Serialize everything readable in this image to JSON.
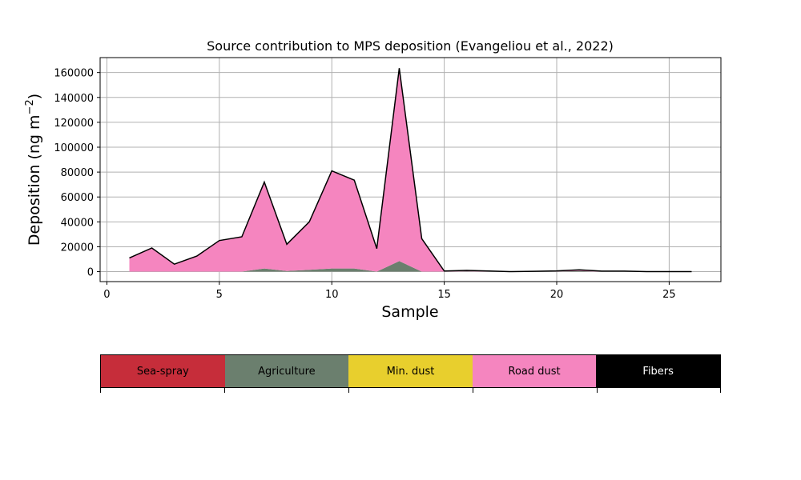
{
  "chart_data": {
    "type": "area",
    "title": "Source contribution to MPS deposition (Evangeliou et al., 2022)",
    "xlabel": "Sample",
    "ylabel": "Deposition (ng m",
    "ylabel_sup": "−2",
    "ylabel_close": ")",
    "xlim": [
      -0.3,
      27.3
    ],
    "ylim": [
      -8000,
      172000
    ],
    "xticks": [
      0,
      5,
      10,
      15,
      20,
      25
    ],
    "yticks": [
      0,
      20000,
      40000,
      60000,
      80000,
      100000,
      120000,
      140000,
      160000
    ],
    "grid": true,
    "x": [
      1,
      2,
      3,
      4,
      5,
      6,
      7,
      8,
      9,
      10,
      11,
      12,
      13,
      14,
      15,
      16,
      17,
      18,
      19,
      20,
      21,
      22,
      23,
      24,
      25,
      26
    ],
    "series": [
      {
        "name": "Sea-spray",
        "color": "#c62d3a",
        "values": [
          0,
          0,
          0,
          0,
          0,
          0,
          0,
          0,
          0,
          0,
          0,
          0,
          0,
          0,
          0,
          0,
          0,
          0,
          0,
          0,
          0,
          0,
          0,
          0,
          0,
          0
        ]
      },
      {
        "name": "Agriculture",
        "color": "#6b7f6e",
        "values": [
          0,
          0,
          0,
          0,
          0,
          0,
          2500,
          500,
          1500,
          2500,
          2500,
          0,
          8500,
          0,
          0,
          300,
          0,
          0,
          0,
          200,
          400,
          0,
          0,
          0,
          0,
          0
        ]
      },
      {
        "name": "Min. dust",
        "color": "#e8cf2d",
        "values": [
          0,
          0,
          0,
          0,
          0,
          0,
          0,
          0,
          0,
          0,
          0,
          0,
          0,
          0,
          0,
          0,
          0,
          0,
          0,
          0,
          0,
          0,
          0,
          0,
          0,
          0
        ]
      },
      {
        "name": "Road dust",
        "color": "#f585bf",
        "values": [
          11000,
          19000,
          6000,
          12500,
          25000,
          28000,
          69500,
          21500,
          38500,
          78500,
          71000,
          18500,
          155000,
          26500,
          500,
          400,
          500,
          0,
          300,
          400,
          400,
          400,
          400,
          0,
          0,
          0
        ]
      },
      {
        "name": "Fibers",
        "color": "#000000",
        "values": [
          0,
          0,
          0,
          0,
          0,
          0,
          0,
          0,
          0,
          0,
          0,
          0,
          0,
          0,
          0,
          300,
          0,
          0,
          0,
          0,
          700,
          0,
          0,
          0,
          0,
          0
        ]
      }
    ],
    "legend_placement": "bottom"
  },
  "legend": {
    "items": [
      {
        "label": "Sea-spray",
        "color": "#c62d3a",
        "text_color": "#000000"
      },
      {
        "label": "Agriculture",
        "color": "#6b7f6e",
        "text_color": "#000000"
      },
      {
        "label": "Min. dust",
        "color": "#e8cf2d",
        "text_color": "#000000"
      },
      {
        "label": "Road dust",
        "color": "#f585bf",
        "text_color": "#000000"
      },
      {
        "label": "Fibers",
        "color": "#000000",
        "text_color": "#ffffff"
      }
    ]
  }
}
